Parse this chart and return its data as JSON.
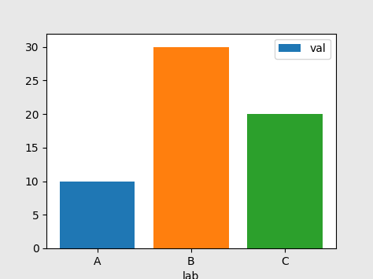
{
  "categories": [
    "A",
    "B",
    "C"
  ],
  "values": [
    10,
    30,
    20
  ],
  "bar_colors": [
    "#1f77b4",
    "#ff7f0e",
    "#2ca02c"
  ],
  "xlabel": "lab",
  "ylim": [
    0,
    32
  ],
  "yticks": [
    0,
    5,
    10,
    15,
    20,
    25,
    30
  ],
  "legend_label": "val",
  "figure_bg": "#e8e8e8",
  "axes_bg": "#ffffff",
  "bar_width": 0.8
}
